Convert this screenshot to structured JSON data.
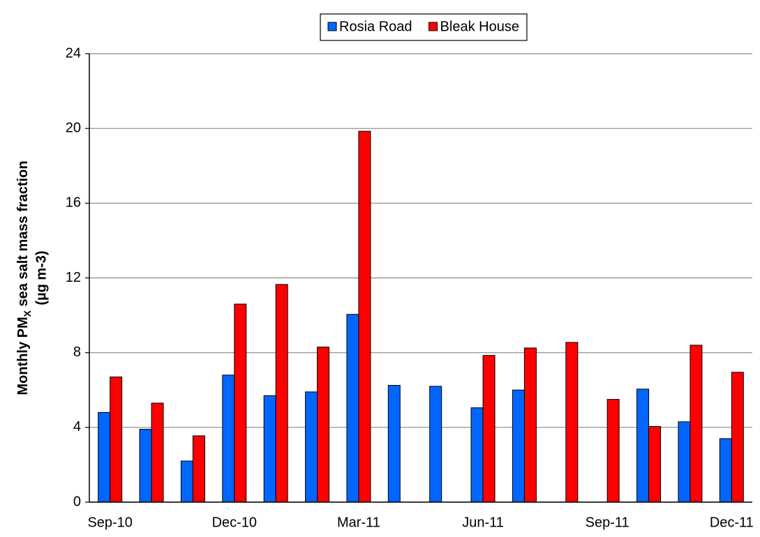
{
  "chart_data": {
    "type": "bar",
    "ylabel": [
      "Monthly PM",
      "X",
      " sea salt mass fraction",
      "(µg m-3)"
    ],
    "categories": [
      "Sep-10",
      null,
      null,
      "Dec-10",
      null,
      null,
      "Mar-11",
      null,
      null,
      "Jun-11",
      null,
      null,
      "Sep-11",
      null,
      null,
      "Dec-11"
    ],
    "series": [
      {
        "name": "Rosia Road",
        "color": "#0066ff",
        "values": [
          4.8,
          3.9,
          2.2,
          6.8,
          5.7,
          5.9,
          10.05,
          6.25,
          6.2,
          5.05,
          6.0,
          null,
          null,
          6.05,
          4.3,
          3.4
        ]
      },
      {
        "name": "Bleak House",
        "color": "#ff0000",
        "values": [
          6.7,
          5.3,
          3.55,
          10.6,
          11.65,
          8.3,
          19.85,
          null,
          null,
          7.85,
          8.25,
          8.55,
          5.5,
          4.05,
          8.4,
          6.95
        ]
      }
    ],
    "ylim": [
      0,
      24
    ],
    "yticks": [
      0,
      4,
      8,
      12,
      16,
      20,
      24
    ],
    "grid": true,
    "legend": "top"
  }
}
